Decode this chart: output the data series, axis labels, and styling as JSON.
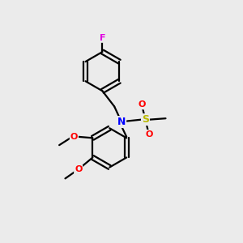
{
  "background_color": "#ebebeb",
  "bond_color": "#000000",
  "atom_colors": {
    "F": "#e000e0",
    "N": "#0000ff",
    "O": "#ff0000",
    "S": "#b8b800",
    "C": "#000000"
  },
  "figsize": [
    3.0,
    3.0
  ],
  "dpi": 100
}
